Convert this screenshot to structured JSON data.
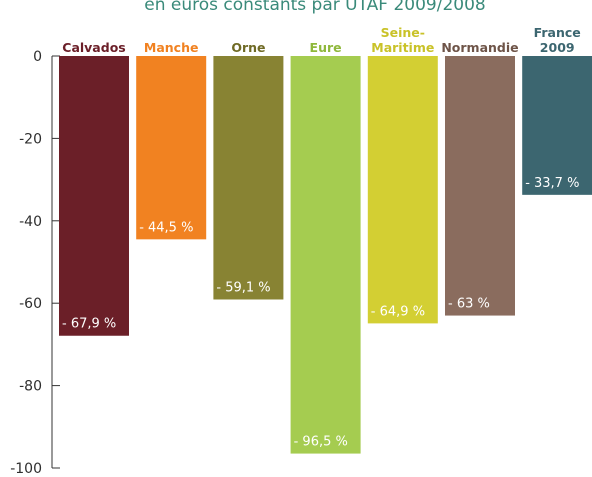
{
  "chart_data": {
    "type": "bar",
    "subtitle": "en euros constants par UTAF 2009/2008",
    "ylim": [
      -100,
      0
    ],
    "yticks": [
      0,
      -20,
      -40,
      -60,
      -80,
      -100
    ],
    "yticks_text": [
      "0",
      "-20",
      "-40",
      "-60",
      "-80",
      "-100"
    ],
    "grid": false,
    "legend": "none",
    "categories": [
      {
        "label": [
          "Calvados"
        ],
        "color": "#6b1f28",
        "label_color": "#6b1f28",
        "value": -67.9,
        "value_text": "- 67,9 %"
      },
      {
        "label": [
          "Manche"
        ],
        "color": "#f18221",
        "label_color": "#f18221",
        "value": -44.5,
        "value_text": "- 44,5 %"
      },
      {
        "label": [
          "Orne"
        ],
        "color": "#888333",
        "label_color": "#6f6a25",
        "value": -59.1,
        "value_text": "- 59,1 %"
      },
      {
        "label": [
          "Eure"
        ],
        "color": "#a5cc50",
        "label_color": "#8fb83b",
        "value": -96.5,
        "value_text": "- 96,5 %"
      },
      {
        "label": [
          "Seine-",
          "Maritime"
        ],
        "color": "#d3cf33",
        "label_color": "#c9c228",
        "value": -64.9,
        "value_text": "- 64,9 %"
      },
      {
        "label": [
          "Normandie"
        ],
        "color": "#8a6c5e",
        "label_color": "#6e5448",
        "value": -63,
        "value_text": "- 63 %"
      },
      {
        "label": [
          "France",
          "2009"
        ],
        "color": "#3c6670",
        "label_color": "#3c6670",
        "value": -33.7,
        "value_text": "- 33,7 %"
      }
    ]
  }
}
